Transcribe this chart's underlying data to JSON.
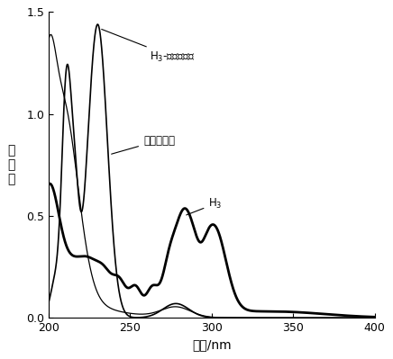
{
  "xlabel": "波长/nm",
  "ylabel": "吸\n收\n值",
  "xlim": [
    200,
    400
  ],
  "ylim": [
    0.0,
    1.5
  ],
  "xticks": [
    200,
    250,
    300,
    350,
    400
  ],
  "yticks": [
    0.0,
    0.5,
    1.0,
    1.5
  ],
  "line_color": "#000000",
  "background_color": "#ffffff"
}
